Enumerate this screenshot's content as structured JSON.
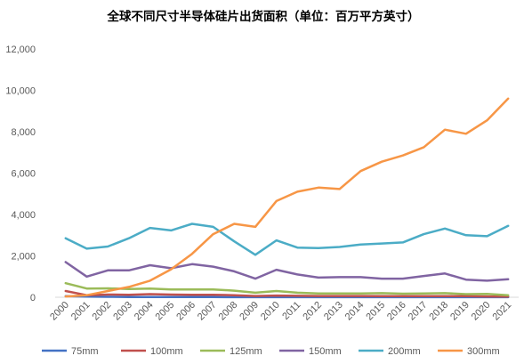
{
  "chart_data": {
    "type": "line",
    "title": "全球不同尺寸半导体硅片出货面积（单位：百万平方英寸）",
    "xlabel": "",
    "ylabel": "",
    "x": [
      "2000",
      "2001",
      "2002",
      "2003",
      "2004",
      "2005",
      "2006",
      "2007",
      "2008",
      "2009",
      "2010",
      "2011",
      "2012",
      "2013",
      "2014",
      "2015",
      "2016",
      "2017",
      "2018",
      "2019",
      "2020",
      "2021"
    ],
    "ylim": [
      0,
      12000
    ],
    "yticks": [
      0,
      2000,
      4000,
      6000,
      8000,
      10000,
      12000
    ],
    "ytick_labels": [
      "0",
      "2,000",
      "4,000",
      "6,000",
      "8,000",
      "10,000",
      "12,000"
    ],
    "grid": false,
    "legend_position": "bottom",
    "series": [
      {
        "name": "75mm",
        "color": "#4472C4",
        "values": [
          50,
          30,
          20,
          15,
          10,
          10,
          10,
          8,
          6,
          5,
          5,
          5,
          4,
          4,
          4,
          4,
          3,
          3,
          3,
          3,
          3,
          3
        ]
      },
      {
        "name": "100mm",
        "color": "#C0504D",
        "values": [
          300,
          100,
          130,
          120,
          150,
          130,
          120,
          120,
          100,
          60,
          80,
          70,
          60,
          60,
          60,
          50,
          50,
          50,
          50,
          50,
          40,
          30
        ]
      },
      {
        "name": "125mm",
        "color": "#9BBB59",
        "values": [
          680,
          420,
          430,
          400,
          420,
          380,
          380,
          380,
          320,
          220,
          300,
          220,
          180,
          180,
          180,
          200,
          170,
          180,
          200,
          150,
          160,
          100
        ]
      },
      {
        "name": "150mm",
        "color": "#8064A2",
        "values": [
          1700,
          1000,
          1300,
          1300,
          1550,
          1400,
          1600,
          1480,
          1250,
          900,
          1330,
          1100,
          950,
          970,
          970,
          900,
          900,
          1030,
          1150,
          850,
          800,
          870
        ]
      },
      {
        "name": "200mm",
        "color": "#4BACC6",
        "values": [
          2850,
          2350,
          2450,
          2850,
          3350,
          3230,
          3550,
          3400,
          2700,
          2050,
          2750,
          2400,
          2380,
          2430,
          2550,
          2600,
          2650,
          3050,
          3320,
          3000,
          2950,
          3450
        ]
      },
      {
        "name": "300mm",
        "color": "#F79646",
        "values": [
          40,
          100,
          300,
          500,
          800,
          1350,
          2100,
          3050,
          3550,
          3400,
          4650,
          5100,
          5300,
          5230,
          6100,
          6550,
          6850,
          7250,
          8100,
          7900,
          8550,
          9600
        ]
      }
    ]
  }
}
